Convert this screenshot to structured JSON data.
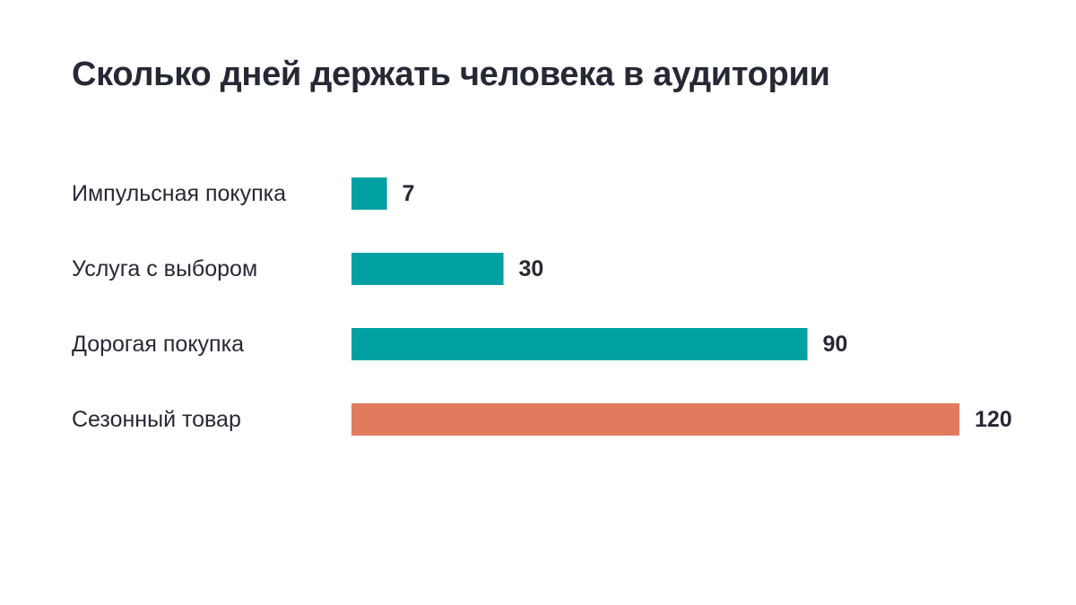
{
  "chart_data": {
    "type": "bar",
    "orientation": "horizontal",
    "title": "Сколько дней держать человека в аудитории",
    "xlabel": "",
    "ylabel": "",
    "categories": [
      "Импульсная покупка",
      "Услуга с выбором",
      "Дорогая покупка",
      "Сезонный товар"
    ],
    "values": [
      7,
      30,
      90,
      120
    ],
    "value_labels": [
      "7",
      "30",
      "90",
      "120"
    ],
    "colors": [
      "#00A0A3",
      "#00A0A3",
      "#00A0A3",
      "#E27A5E"
    ],
    "xlim": [
      0,
      120
    ],
    "grid": false,
    "legend": "none"
  },
  "colors": {
    "text": "#262933",
    "accent": "#00A0A3",
    "highlight": "#E27A5E"
  }
}
